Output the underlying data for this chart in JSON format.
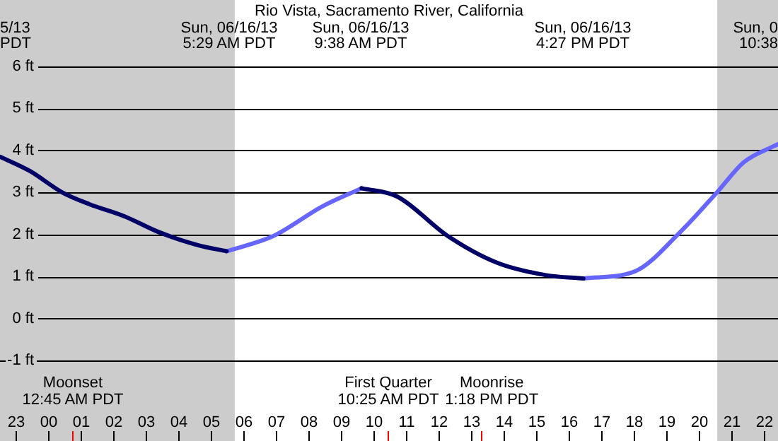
{
  "chart_data": {
    "type": "line",
    "title": "Rio Vista, Sacramento River, California",
    "xlim": [
      "--06-15T22:31",
      "--06-16T22:26"
    ],
    "ylim": [
      -1,
      6
    ],
    "xticks": [
      {
        "value": "--06-15T23:00",
        "label": "23"
      },
      {
        "value": "--06-16T00:00",
        "label": "00"
      },
      {
        "value": "--06-16T01:00",
        "label": "01"
      },
      {
        "value": "--06-16T02:00",
        "label": "02"
      },
      {
        "value": "--06-16T03:00",
        "label": "03"
      },
      {
        "value": "--06-16T04:00",
        "label": "04"
      },
      {
        "value": "--06-16T05:00",
        "label": "05"
      },
      {
        "value": "--06-16T06:00",
        "label": "06"
      },
      {
        "value": "--06-16T07:00",
        "label": "07"
      },
      {
        "value": "--06-16T08:00",
        "label": "08"
      },
      {
        "value": "--06-16T09:00",
        "label": "09"
      },
      {
        "value": "--06-16T10:00",
        "label": "10"
      },
      {
        "value": "--06-16T11:00",
        "label": "11"
      },
      {
        "value": "--06-16T12:00",
        "label": "12"
      },
      {
        "value": "--06-16T13:00",
        "label": "13"
      },
      {
        "value": "--06-16T14:00",
        "label": "14"
      },
      {
        "value": "--06-16T15:00",
        "label": "15"
      },
      {
        "value": "--06-16T16:00",
        "label": "16"
      },
      {
        "value": "--06-16T17:00",
        "label": "17"
      },
      {
        "value": "--06-16T18:00",
        "label": "18"
      },
      {
        "value": "--06-16T19:00",
        "label": "19"
      },
      {
        "value": "--06-16T20:00",
        "label": "20"
      },
      {
        "value": "--06-16T21:00",
        "label": "21"
      },
      {
        "value": "--06-16T22:00",
        "label": "22"
      }
    ],
    "yticks": [
      {
        "value": 6,
        "label": "6 ft"
      },
      {
        "value": 5,
        "label": "5 ft"
      },
      {
        "value": 4,
        "label": "4 ft"
      },
      {
        "value": 3,
        "label": "3 ft"
      },
      {
        "value": 2,
        "label": "2 ft"
      },
      {
        "value": 1,
        "label": "1 ft"
      },
      {
        "value": 0,
        "label": "0 ft"
      },
      {
        "value": -1,
        "label": "-1 ft"
      }
    ],
    "grid": "y",
    "legend": false,
    "marker": "none",
    "line_style": "solid",
    "series": [
      {
        "color": "#000066",
        "x": [
          "--06-15T22:31",
          "--06-15T23:26",
          "--06-16T00:26",
          "--06-16T01:16",
          "--06-16T02:21",
          "--06-16T03:23",
          "--06-16T04:37",
          "--06-16T05:29",
          null,
          "--06-16T09:38",
          "--06-16T10:44",
          "--06-16T12:16",
          "--06-16T13:47",
          "--06-16T15:18",
          "--06-16T16:27"
        ],
        "values": [
          3.85,
          3.51,
          3.0,
          2.72,
          2.43,
          2.06,
          1.74,
          1.6,
          null,
          3.1,
          2.9,
          1.97,
          1.33,
          1.03,
          0.95
        ]
      },
      {
        "color": "#6666ff",
        "x": [
          "--06-16T05:29",
          "--06-16T06:55",
          "--06-16T08:26",
          "--06-16T09:38",
          null,
          "--06-16T16:27",
          "--06-16T18:02",
          "--06-16T19:26",
          "--06-16T20:34",
          "--06-16T21:23",
          "--06-16T22:26"
        ],
        "values": [
          1.6,
          1.96,
          2.67,
          3.1,
          null,
          0.95,
          1.12,
          2.06,
          3.01,
          3.72,
          4.15
        ]
      }
    ],
    "bands": [
      {
        "axis": "x",
        "from": "--06-15T22:31",
        "to": "--06-16T05:44",
        "color": "#cccccc"
      },
      {
        "axis": "x",
        "from": "--06-16T20:34",
        "to": "--06-16T22:26",
        "color": "#cccccc"
      }
    ],
    "ref_lines": [
      {
        "axis": "x",
        "value": "--06-16T00:45",
        "label": "Moonset\n12:45 AM PDT",
        "color": "#ff0000"
      },
      {
        "axis": "x",
        "value": "--06-16T10:25",
        "label": "First Quarter\n10:25 AM PDT",
        "color": "#ff0000"
      },
      {
        "axis": "x",
        "value": "--06-16T13:18",
        "label": "Moonrise\n1:18 PM PDT",
        "color": "#ff0000"
      }
    ],
    "annotations": [
      "5/13\nPDT",
      "Sun, 0\n10:38",
      "Sun, 06/16/13\n5:29 AM PDT",
      "Sun, 06/16/13\n9:38 AM PDT",
      "Sun, 06/16/13\n4:27 PM PDT"
    ]
  }
}
